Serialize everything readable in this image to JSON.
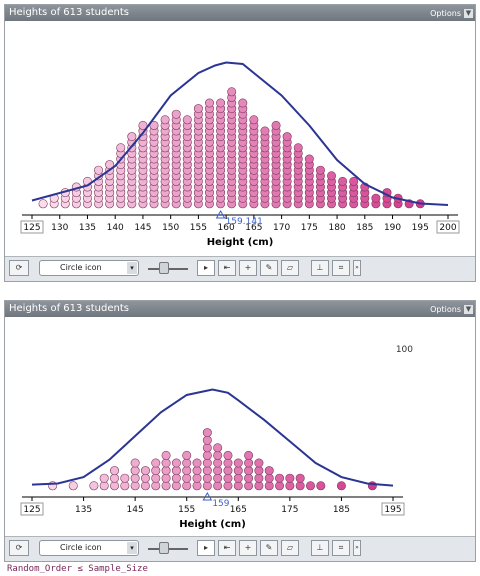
{
  "panels": [
    {
      "title": "Heights of 613 students",
      "options_label": "Options",
      "annotation": "",
      "marker_value": 159,
      "marker_label": "159.141",
      "chart_data": {
        "type": "scatter",
        "xlabel": "Height (cm)",
        "xlim": [
          125,
          200
        ],
        "ticks": [
          125,
          130,
          135,
          140,
          145,
          150,
          155,
          160,
          165,
          170,
          175,
          180,
          185,
          190,
          195,
          200
        ],
        "dot_counts": [
          [
            127,
            1
          ],
          [
            129,
            2
          ],
          [
            131,
            3
          ],
          [
            133,
            4
          ],
          [
            135,
            5
          ],
          [
            137,
            7
          ],
          [
            139,
            8
          ],
          [
            141,
            11
          ],
          [
            143,
            13
          ],
          [
            145,
            15
          ],
          [
            147,
            15
          ],
          [
            149,
            16
          ],
          [
            151,
            17
          ],
          [
            153,
            16
          ],
          [
            155,
            18
          ],
          [
            157,
            19
          ],
          [
            159,
            19
          ],
          [
            161,
            21
          ],
          [
            163,
            19
          ],
          [
            165,
            16
          ],
          [
            167,
            14
          ],
          [
            169,
            15
          ],
          [
            171,
            13
          ],
          [
            173,
            11
          ],
          [
            175,
            9
          ],
          [
            177,
            7
          ],
          [
            179,
            6
          ],
          [
            181,
            5
          ],
          [
            183,
            5
          ],
          [
            185,
            4
          ],
          [
            187,
            2
          ],
          [
            189,
            3
          ],
          [
            191,
            2
          ],
          [
            193,
            1
          ],
          [
            195,
            1
          ]
        ],
        "curve": [
          [
            125,
            0.05
          ],
          [
            135,
            0.15
          ],
          [
            140,
            0.28
          ],
          [
            145,
            0.5
          ],
          [
            150,
            0.75
          ],
          [
            155,
            0.9
          ],
          [
            158,
            0.95
          ],
          [
            160,
            0.97
          ],
          [
            163,
            0.96
          ],
          [
            165,
            0.9
          ],
          [
            170,
            0.75
          ],
          [
            175,
            0.55
          ],
          [
            180,
            0.32
          ],
          [
            185,
            0.16
          ],
          [
            190,
            0.07
          ],
          [
            195,
            0.03
          ],
          [
            200,
            0.02
          ]
        ]
      },
      "toolbar": {
        "select_label": "Circle icon"
      }
    },
    {
      "title": "Heights of 613 students",
      "options_label": "Options",
      "annotation": "100",
      "marker_value": 159,
      "marker_label": "159",
      "chart_data": {
        "type": "scatter",
        "xlabel": "Height (cm)",
        "xlim": [
          125,
          195
        ],
        "ticks": [
          125,
          135,
          145,
          155,
          165,
          175,
          185,
          195
        ],
        "dot_counts": [
          [
            129,
            1
          ],
          [
            133,
            1
          ],
          [
            137,
            1
          ],
          [
            139,
            2
          ],
          [
            141,
            3
          ],
          [
            143,
            2
          ],
          [
            145,
            4
          ],
          [
            147,
            3
          ],
          [
            149,
            4
          ],
          [
            151,
            5
          ],
          [
            153,
            4
          ],
          [
            155,
            5
          ],
          [
            157,
            4
          ],
          [
            159,
            8
          ],
          [
            161,
            6
          ],
          [
            163,
            5
          ],
          [
            165,
            4
          ],
          [
            167,
            5
          ],
          [
            169,
            4
          ],
          [
            171,
            3
          ],
          [
            173,
            2
          ],
          [
            175,
            2
          ],
          [
            177,
            2
          ],
          [
            179,
            1
          ],
          [
            181,
            1
          ],
          [
            185,
            1
          ],
          [
            191,
            1
          ]
        ],
        "curve": [
          [
            125,
            0.05
          ],
          [
            130,
            0.06
          ],
          [
            135,
            0.12
          ],
          [
            140,
            0.28
          ],
          [
            145,
            0.5
          ],
          [
            150,
            0.72
          ],
          [
            155,
            0.88
          ],
          [
            160,
            0.93
          ],
          [
            163,
            0.9
          ],
          [
            165,
            0.83
          ],
          [
            170,
            0.65
          ],
          [
            175,
            0.45
          ],
          [
            180,
            0.25
          ],
          [
            185,
            0.12
          ],
          [
            190,
            0.06
          ],
          [
            195,
            0.04
          ]
        ]
      },
      "toolbar": {
        "select_label": "Circle icon"
      }
    }
  ],
  "caption": "Random_Order ≤ Sample_Size",
  "colors": {
    "dot_light": "#fbe1ef",
    "dot_dark": "#cf2f86",
    "curve": "#2b3593",
    "marker": "#3c5fd0",
    "caption": "#7a2858"
  }
}
